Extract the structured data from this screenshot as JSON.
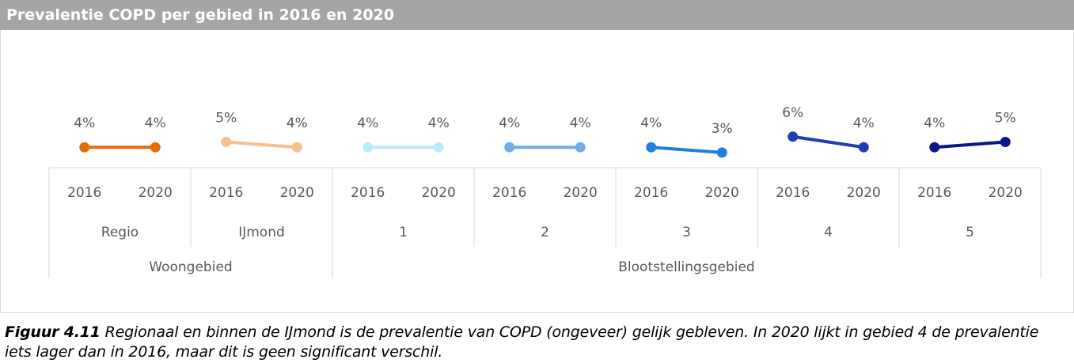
{
  "chart_data": {
    "type": "line",
    "title": "Prevalentie COPD per gebied in 2016 en 2020",
    "ylim": [
      0,
      10
    ],
    "super_groups": [
      {
        "label": "Woongebied",
        "groups": [
          {
            "label": "Regio",
            "color": "#e46c0a",
            "categories": [
              "2016",
              "2020"
            ],
            "values": [
              4,
              4
            ],
            "value_labels": [
              "4%",
              "4%"
            ]
          },
          {
            "label": "IJmond",
            "color": "#f8c090",
            "categories": [
              "2016",
              "2020"
            ],
            "values": [
              5,
              4
            ],
            "value_labels": [
              "5%",
              "4%"
            ]
          }
        ]
      },
      {
        "label": "Blootstellingsgebied",
        "groups": [
          {
            "label": "1",
            "color": "#b8ecf4",
            "categories": [
              "2016",
              "2020"
            ],
            "values": [
              4,
              4
            ],
            "value_labels": [
              "4%",
              "4%"
            ]
          },
          {
            "label": "2",
            "color": "#70aee6",
            "categories": [
              "2016",
              "2020"
            ],
            "values": [
              4,
              4
            ],
            "value_labels": [
              "4%",
              "4%"
            ]
          },
          {
            "label": "3",
            "color": "#1f7fe0",
            "categories": [
              "2016",
              "2020"
            ],
            "values": [
              4,
              3
            ],
            "value_labels": [
              "4%",
              "3%"
            ]
          },
          {
            "label": "4",
            "color": "#1f3fb0",
            "categories": [
              "2016",
              "2020"
            ],
            "values": [
              6,
              4
            ],
            "value_labels": [
              "6%",
              "4%"
            ]
          },
          {
            "label": "5",
            "color": "#0c168a",
            "categories": [
              "2016",
              "2020"
            ],
            "values": [
              4,
              5
            ],
            "value_labels": [
              "4%",
              "5%"
            ]
          }
        ]
      }
    ],
    "caption_label": "Figuur 4.11",
    "caption_text": "Regionaal en binnen de IJmond is de prevalentie van COPD (ongeveer) gelijk gebleven. In 2020 lijkt in gebied 4 de prevalentie iets lager dan in 2016, maar dit is geen significant verschil."
  }
}
